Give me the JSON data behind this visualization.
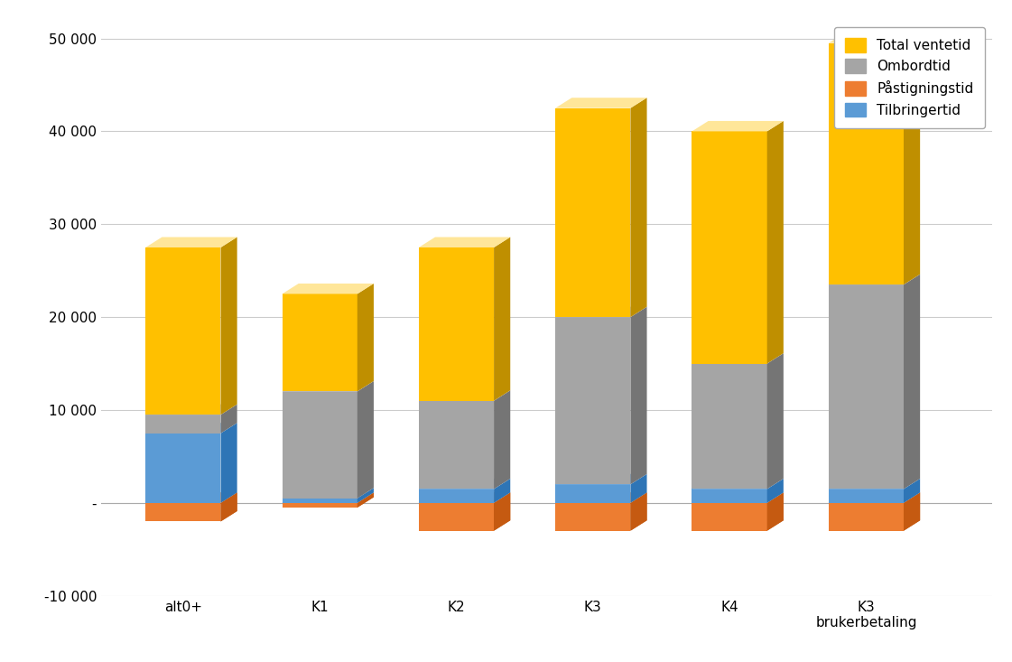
{
  "categories": [
    "alt0+",
    "K1",
    "K2",
    "K3",
    "K4",
    "K3\nbrukerbetaling"
  ],
  "tilbringertid": [
    7500,
    500,
    1500,
    2000,
    1500,
    1500
  ],
  "pastigningstid": [
    -2000,
    -500,
    -3000,
    -3000,
    -3000,
    -3000
  ],
  "ombordtid": [
    2000,
    11500,
    9500,
    18000,
    13500,
    22000
  ],
  "ventetid": [
    18000,
    10500,
    16500,
    22500,
    25000,
    26000
  ],
  "colors": {
    "tilbringertid": "#5B9BD5",
    "pastigningstid": "#ED7D31",
    "ombordtid": "#A5A5A5",
    "ventetid": "#FFC000"
  },
  "side_colors": {
    "tilbringertid": "#2E75B6",
    "pastigningstid": "#C55A11",
    "ombordtid": "#757575",
    "ventetid": "#BF8F00"
  },
  "top_colors": {
    "tilbringertid": "#9DC3E6",
    "pastigningstid": "#F4B183",
    "ombordtid": "#D0CECE",
    "ventetid": "#FFE699"
  },
  "legend_labels": [
    "Total ventetid",
    "Ombordtid",
    "Påstigningstid",
    "Tilbringertid"
  ],
  "ylim": [
    -10000,
    52000
  ],
  "yticks": [
    -10000,
    0,
    10000,
    20000,
    30000,
    40000,
    50000
  ],
  "ytick_labels": [
    "-10 000",
    "-",
    "10 000",
    "20 000",
    "30 000",
    "40 000",
    "50 000"
  ],
  "background_color": "#FFFFFF",
  "bar_width": 0.55,
  "depth": 0.12,
  "grid_color": "#CCCCCC"
}
